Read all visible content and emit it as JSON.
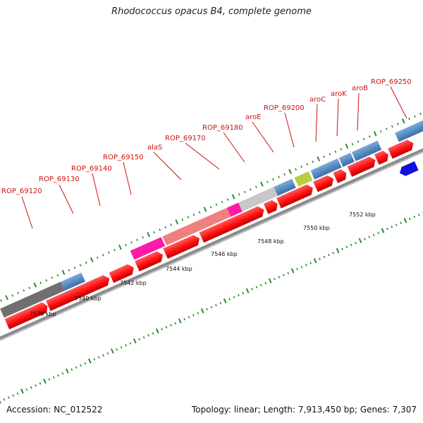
{
  "title": "Rhodococcus opacus B4, complete genome",
  "accession": "Accession: NC_012522",
  "summary": "Topology: linear; Length: 7,913,450 bp; Genes: 7,307",
  "gene_labels": [
    "ROP_69120",
    "ROP_69130",
    "ROP_69140",
    "ROP_69150",
    "alaS",
    "ROP_69170",
    "ROP_69180",
    "aroE",
    "ROP_69200",
    "aroC",
    "aroK",
    "aroB",
    "ROP_69250"
  ],
  "kbp_labels": [
    "7538 kbp",
    "7540 kbp",
    "7542 kbp",
    "7544 kbp",
    "7546 kbp",
    "7548 kbp",
    "7550 kbp",
    "7552 kbp"
  ],
  "colors": {
    "label_red": "#cc1111",
    "cds_red": "#ff1010",
    "gene_blue": "#4a86c0",
    "grey_dark": "#707070",
    "grey_light": "#c8c8c8",
    "pink_light": "#f08080",
    "magenta": "#ff1aa8",
    "tick_green": "#2a8a2a"
  }
}
